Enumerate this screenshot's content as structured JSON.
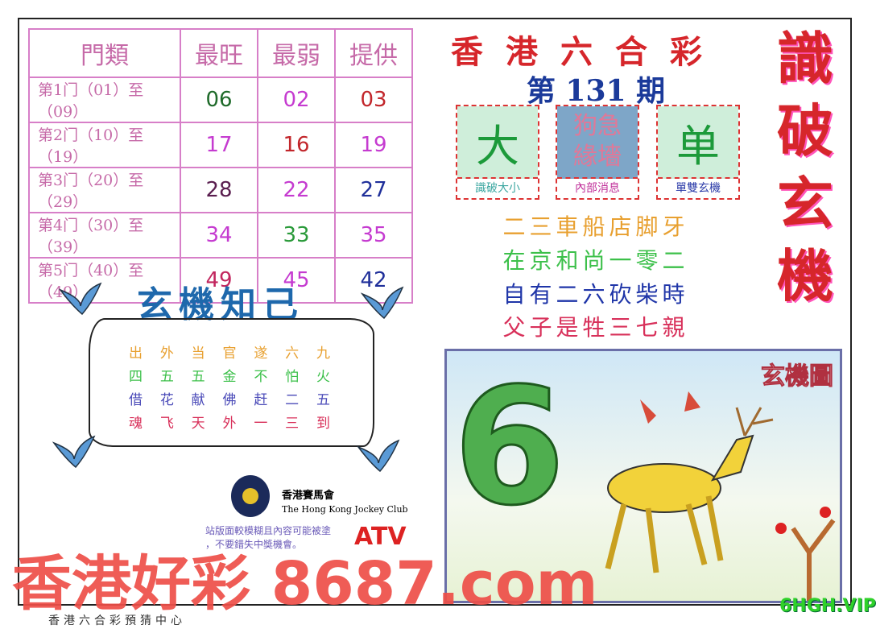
{
  "table": {
    "headers": [
      "門類",
      "最旺",
      "最弱",
      "提供"
    ],
    "rows": [
      {
        "label": "第1门（01）至（09）",
        "values": [
          "06",
          "02",
          "03"
        ],
        "colors": [
          "#1f6a2a",
          "#c53bd0",
          "#c2262b"
        ]
      },
      {
        "label": "第2门（10）至（19）",
        "values": [
          "17",
          "16",
          "19"
        ],
        "colors": [
          "#c53bd0",
          "#c2262b",
          "#c53bd0"
        ]
      },
      {
        "label": "第3门（20）至（29）",
        "values": [
          "28",
          "22",
          "27"
        ],
        "colors": [
          "#5a1e4f",
          "#c53bd0",
          "#1f2f9a"
        ]
      },
      {
        "label": "第4门（30）至（39）",
        "values": [
          "34",
          "33",
          "35"
        ],
        "colors": [
          "#c53bd0",
          "#2a9a3a",
          "#c53bd0"
        ]
      },
      {
        "label": "第5门（40）至（49）",
        "values": [
          "49",
          "45",
          "42"
        ],
        "colors": [
          "#c2265e",
          "#c53bd0",
          "#1f2f9a"
        ]
      }
    ]
  },
  "header": {
    "title": "香港六合彩",
    "issue": "第 131 期",
    "vertical_title": "識破玄機"
  },
  "boxes": [
    {
      "glyph": "大",
      "caption": "識破大小"
    },
    {
      "glyph": "狗急緣墻",
      "caption": "內部消息"
    },
    {
      "glyph": "单",
      "caption": "單雙玄機"
    }
  ],
  "poem_right": [
    "二三車船店脚牙",
    "在京和尚一零二",
    "自有二六砍柴時",
    "父子是牲三七親"
  ],
  "poem_right_colors": [
    "#e8a030",
    "#3cc04a",
    "#1f35a8",
    "#d8305a"
  ],
  "left_panel": {
    "title": "玄機知己",
    "rows": [
      [
        "出",
        "外",
        "当",
        "官",
        "遂",
        "六",
        "九"
      ],
      [
        "四",
        "五",
        "五",
        "金",
        "不",
        "怕",
        "火"
      ],
      [
        "借",
        "花",
        "献",
        "佛",
        "赶",
        "二",
        "五"
      ],
      [
        "魂",
        "飞",
        "天",
        "外",
        "一",
        "三",
        "到"
      ]
    ],
    "colors": [
      "#e8a030",
      "#3cc04a",
      "#4a4ab8",
      "#d8305a"
    ]
  },
  "picture": {
    "stamp": "玄機圖",
    "number": "6"
  },
  "jockey": {
    "zh": "香港賽馬會",
    "en": "The Hong Kong Jockey Club"
  },
  "disclaimer": [
    "站版面較模糊且內容可能被塗",
    "，不要錯失中獎機會。"
  ],
  "watermark": "香港好彩 8687.com",
  "atv": "ATV",
  "footer": "香港六合彩預猜中心",
  "corner_mark": "6HGH.VIP"
}
